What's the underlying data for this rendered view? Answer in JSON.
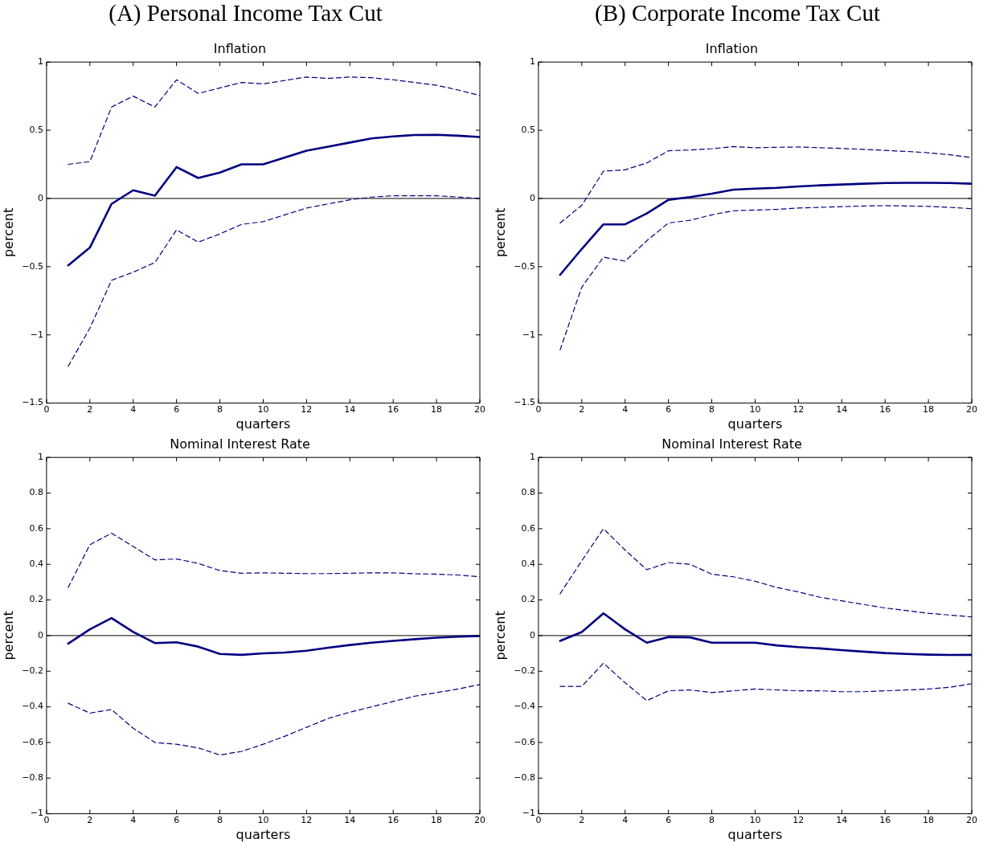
{
  "chart_data": [
    {
      "type": "line",
      "title": "Inflation",
      "annotations": [
        "(A) Personal Income Tax Cut"
      ],
      "xlabel": "quarters",
      "ylabel": "percent",
      "x": [
        1,
        2,
        3,
        4,
        5,
        6,
        7,
        8,
        9,
        10,
        11,
        12,
        13,
        14,
        15,
        16,
        17,
        18,
        19,
        20
      ],
      "xlim": [
        0,
        20
      ],
      "xticks": [
        0,
        2,
        4,
        6,
        8,
        10,
        12,
        14,
        16,
        18,
        20
      ],
      "ylim": [
        -1.5,
        1
      ],
      "yticks": [
        -1.5,
        -1,
        -0.5,
        0,
        0.5,
        1
      ],
      "grid": false,
      "legend": false,
      "marker": "none",
      "ref_lines": [
        {
          "axis": "y",
          "value": 0,
          "color": "#000000"
        }
      ],
      "series": [
        {
          "color": "#000080",
          "line_style": "solid",
          "values": [
            -0.49,
            -0.36,
            -0.04,
            0.06,
            0.02,
            0.23,
            0.15,
            0.19,
            0.25,
            0.25,
            0.3,
            0.35,
            0.38,
            0.41,
            0.44,
            0.455,
            0.465,
            0.467,
            0.46,
            0.45
          ]
        },
        {
          "color": "#000080",
          "line_style": "dashed",
          "values": [
            0.25,
            0.27,
            0.67,
            0.75,
            0.67,
            0.87,
            0.77,
            0.81,
            0.85,
            0.84,
            0.865,
            0.89,
            0.88,
            0.89,
            0.885,
            0.87,
            0.85,
            0.83,
            0.795,
            0.755
          ]
        },
        {
          "color": "#000080",
          "line_style": "dashed",
          "values": [
            -1.23,
            -0.95,
            -0.6,
            -0.54,
            -0.47,
            -0.23,
            -0.32,
            -0.26,
            -0.19,
            -0.17,
            -0.12,
            -0.07,
            -0.04,
            -0.01,
            0.01,
            0.02,
            0.02,
            0.02,
            0.01,
            0.0
          ]
        }
      ]
    },
    {
      "type": "line",
      "title": "Inflation",
      "annotations": [
        "(B) Corporate Income Tax Cut"
      ],
      "xlabel": "quarters",
      "ylabel": "percent",
      "x": [
        1,
        2,
        3,
        4,
        5,
        6,
        7,
        8,
        9,
        10,
        11,
        12,
        13,
        14,
        15,
        16,
        17,
        18,
        19,
        20
      ],
      "xlim": [
        0,
        20
      ],
      "xticks": [
        0,
        2,
        4,
        6,
        8,
        10,
        12,
        14,
        16,
        18,
        20
      ],
      "ylim": [
        -1.5,
        1
      ],
      "yticks": [
        -1.5,
        -1,
        -0.5,
        0,
        0.5,
        1
      ],
      "grid": false,
      "legend": false,
      "marker": "none",
      "ref_lines": [
        {
          "axis": "y",
          "value": 0,
          "color": "#000000"
        }
      ],
      "series": [
        {
          "color": "#000080",
          "line_style": "solid",
          "values": [
            -0.56,
            -0.37,
            -0.19,
            -0.19,
            -0.11,
            -0.01,
            0.01,
            0.035,
            0.065,
            0.072,
            0.078,
            0.088,
            0.096,
            0.102,
            0.108,
            0.113,
            0.115,
            0.115,
            0.113,
            0.108
          ]
        },
        {
          "color": "#000080",
          "line_style": "dashed",
          "values": [
            -0.18,
            -0.05,
            0.2,
            0.21,
            0.26,
            0.35,
            0.355,
            0.365,
            0.38,
            0.372,
            0.375,
            0.377,
            0.372,
            0.367,
            0.36,
            0.352,
            0.345,
            0.335,
            0.32,
            0.3
          ]
        },
        {
          "color": "#000080",
          "line_style": "dashed",
          "values": [
            -1.11,
            -0.65,
            -0.43,
            -0.46,
            -0.31,
            -0.18,
            -0.16,
            -0.12,
            -0.09,
            -0.085,
            -0.08,
            -0.07,
            -0.065,
            -0.06,
            -0.055,
            -0.053,
            -0.055,
            -0.058,
            -0.065,
            -0.075
          ]
        }
      ]
    },
    {
      "type": "line",
      "title": "Nominal Interest Rate",
      "xlabel": "quarters",
      "ylabel": "percent",
      "x": [
        1,
        2,
        3,
        4,
        5,
        6,
        7,
        8,
        9,
        10,
        11,
        12,
        13,
        14,
        15,
        16,
        17,
        18,
        19,
        20
      ],
      "xlim": [
        0,
        20
      ],
      "xticks": [
        0,
        2,
        4,
        6,
        8,
        10,
        12,
        14,
        16,
        18,
        20
      ],
      "ylim": [
        -1,
        1
      ],
      "yticks": [
        -1,
        -0.8,
        -0.6,
        -0.4,
        -0.2,
        0,
        0.2,
        0.4,
        0.6,
        0.8,
        1
      ],
      "grid": false,
      "legend": false,
      "marker": "none",
      "ref_lines": [
        {
          "axis": "y",
          "value": 0,
          "color": "#000000"
        }
      ],
      "series": [
        {
          "color": "#000080",
          "line_style": "solid",
          "values": [
            -0.045,
            0.035,
            0.098,
            0.02,
            -0.042,
            -0.038,
            -0.062,
            -0.103,
            -0.108,
            -0.1,
            -0.095,
            -0.085,
            -0.068,
            -0.053,
            -0.04,
            -0.03,
            -0.02,
            -0.012,
            -0.006,
            -0.002
          ]
        },
        {
          "color": "#000080",
          "line_style": "dashed",
          "values": [
            0.27,
            0.51,
            0.575,
            0.5,
            0.425,
            0.43,
            0.405,
            0.365,
            0.35,
            0.352,
            0.35,
            0.348,
            0.348,
            0.35,
            0.352,
            0.352,
            0.347,
            0.345,
            0.34,
            0.33
          ]
        },
        {
          "color": "#000080",
          "line_style": "dashed",
          "values": [
            -0.38,
            -0.435,
            -0.415,
            -0.52,
            -0.6,
            -0.61,
            -0.63,
            -0.67,
            -0.65,
            -0.61,
            -0.565,
            -0.515,
            -0.465,
            -0.43,
            -0.4,
            -0.37,
            -0.34,
            -0.32,
            -0.3,
            -0.275
          ]
        }
      ]
    },
    {
      "type": "line",
      "title": "Nominal Interest Rate",
      "xlabel": "quarters",
      "ylabel": "percent",
      "x": [
        1,
        2,
        3,
        4,
        5,
        6,
        7,
        8,
        9,
        10,
        11,
        12,
        13,
        14,
        15,
        16,
        17,
        18,
        19,
        20
      ],
      "xlim": [
        0,
        20
      ],
      "xticks": [
        0,
        2,
        4,
        6,
        8,
        10,
        12,
        14,
        16,
        18,
        20
      ],
      "ylim": [
        -1,
        1
      ],
      "yticks": [
        -1,
        -0.8,
        -0.6,
        -0.4,
        -0.2,
        0,
        0.2,
        0.4,
        0.6,
        0.8,
        1
      ],
      "grid": false,
      "legend": false,
      "marker": "none",
      "ref_lines": [
        {
          "axis": "y",
          "value": 0,
          "color": "#000000"
        }
      ],
      "series": [
        {
          "color": "#000080",
          "line_style": "solid",
          "values": [
            -0.03,
            0.02,
            0.125,
            0.035,
            -0.04,
            -0.008,
            -0.01,
            -0.04,
            -0.04,
            -0.04,
            -0.055,
            -0.065,
            -0.072,
            -0.082,
            -0.09,
            -0.098,
            -0.103,
            -0.107,
            -0.109,
            -0.108
          ]
        },
        {
          "color": "#000080",
          "line_style": "dashed",
          "values": [
            0.235,
            0.42,
            0.6,
            0.48,
            0.37,
            0.41,
            0.4,
            0.345,
            0.33,
            0.305,
            0.27,
            0.245,
            0.215,
            0.195,
            0.175,
            0.155,
            0.14,
            0.125,
            0.115,
            0.105
          ]
        },
        {
          "color": "#000080",
          "line_style": "dashed",
          "values": [
            -0.285,
            -0.285,
            -0.155,
            -0.265,
            -0.365,
            -0.31,
            -0.305,
            -0.32,
            -0.31,
            -0.3,
            -0.305,
            -0.31,
            -0.31,
            -0.315,
            -0.315,
            -0.31,
            -0.305,
            -0.3,
            -0.29,
            -0.27
          ]
        }
      ]
    }
  ]
}
